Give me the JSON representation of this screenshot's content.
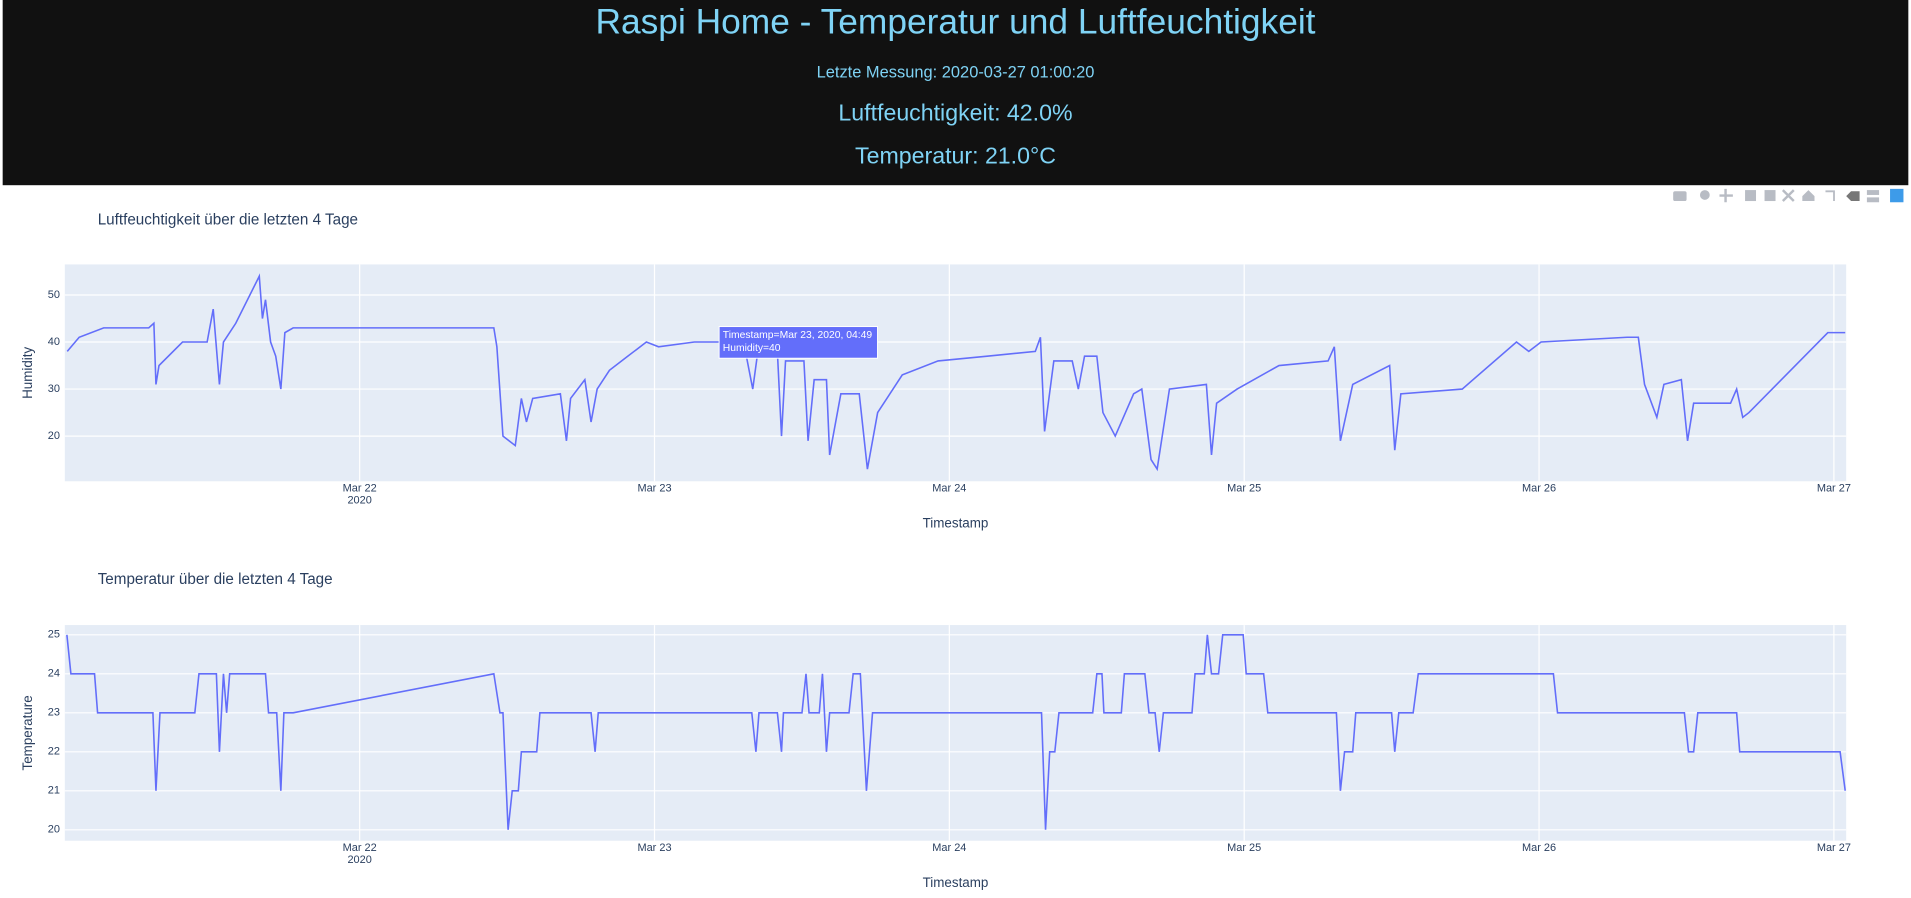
{
  "header": {
    "title": "Raspi Home - Temperatur und Luftfeuchtigkeit",
    "last_measurement": "Letzte Messung: 2020-03-27 01:00:20",
    "humidity": "Luftfeuchtigkeit: 42.0%",
    "temperature": "Temperatur: 21.0°C"
  },
  "chart_data": [
    {
      "type": "line",
      "title": "Luftfeuchtigkeit über die letzten 4 Tage",
      "x_label": "Timestamp",
      "y_label": "Humidity",
      "color": "#636efa",
      "grid": true,
      "xlim": [
        "2020-03-21 00:00",
        "2020-03-27 01:00"
      ],
      "xticks": [
        {
          "value": "2020-03-22",
          "label": "Mar 22",
          "year": "2020"
        },
        {
          "value": "2020-03-23",
          "label": "Mar 23"
        },
        {
          "value": "2020-03-24",
          "label": "Mar 24"
        },
        {
          "value": "2020-03-25",
          "label": "Mar 25"
        },
        {
          "value": "2020-03-26",
          "label": "Mar 26"
        },
        {
          "value": "2020-03-27",
          "label": "Mar 27"
        }
      ],
      "ylim": [
        10.4,
        56.5
      ],
      "yticks": [
        20,
        30,
        40,
        50
      ],
      "tooltip": [
        "Timestamp=Mar 23, 2020, 04:49",
        "Humidity=40"
      ],
      "x": [
        "2020-03-21 00:12",
        "2020-03-21 01:10",
        "2020-03-21 03:10",
        "2020-03-21 06:50",
        "2020-03-21 07:15",
        "2020-03-21 07:25",
        "2020-03-21 07:40",
        "2020-03-21 09:35",
        "2020-03-21 11:35",
        "2020-03-21 12:05",
        "2020-03-21 12:35",
        "2020-03-21 12:55",
        "2020-03-21 13:55",
        "2020-03-21 15:50",
        "2020-03-21 16:05",
        "2020-03-21 16:20",
        "2020-03-21 16:45",
        "2020-03-21 17:10",
        "2020-03-21 17:35",
        "2020-03-21 17:55",
        "2020-03-21 18:35",
        "2020-03-22 10:55",
        "2020-03-22 11:10",
        "2020-03-22 11:40",
        "2020-03-22 12:40",
        "2020-03-22 13:10",
        "2020-03-22 13:35",
        "2020-03-22 14:05",
        "2020-03-22 16:20",
        "2020-03-22 16:50",
        "2020-03-22 17:10",
        "2020-03-22 18:20",
        "2020-03-22 18:50",
        "2020-03-22 19:20",
        "2020-03-22 20:20",
        "2020-03-22 21:50",
        "2020-03-22 23:20",
        "2020-03-23 00:20",
        "2020-03-23 03:15",
        "2020-03-23 07:15",
        "2020-03-23 08:00",
        "2020-03-23 08:25",
        "2020-03-23 10:00",
        "2020-03-23 10:20",
        "2020-03-23 10:40",
        "2020-03-23 12:10",
        "2020-03-23 12:30",
        "2020-03-23 13:00",
        "2020-03-23 14:00",
        "2020-03-23 14:15",
        "2020-03-23 15:10",
        "2020-03-23 16:40",
        "2020-03-23 17:20",
        "2020-03-23 18:10",
        "2020-03-23 20:10",
        "2020-03-23 23:05",
        "2020-03-24 03:05",
        "2020-03-24 07:00",
        "2020-03-24 07:25",
        "2020-03-24 07:45",
        "2020-03-24 08:30",
        "2020-03-24 10:00",
        "2020-03-24 10:30",
        "2020-03-24 11:00",
        "2020-03-24 12:00",
        "2020-03-24 12:30",
        "2020-03-24 13:30",
        "2020-03-24 15:00",
        "2020-03-24 15:40",
        "2020-03-24 16:25",
        "2020-03-24 16:55",
        "2020-03-24 17:55",
        "2020-03-24 20:55",
        "2020-03-24 21:20",
        "2020-03-24 21:45",
        "2020-03-24 23:25",
        "2020-03-25 02:50",
        "2020-03-25 06:50",
        "2020-03-25 07:20",
        "2020-03-25 07:50",
        "2020-03-25 08:50",
        "2020-03-25 11:50",
        "2020-03-25 12:15",
        "2020-03-25 12:45",
        "2020-03-25 17:45",
        "2020-03-25 22:10",
        "2020-03-25 23:10",
        "2020-03-26 00:10",
        "2020-03-26 07:10",
        "2020-03-26 08:05",
        "2020-03-26 08:35",
        "2020-03-26 09:35",
        "2020-03-26 10:10",
        "2020-03-26 11:35",
        "2020-03-26 12:05",
        "2020-03-26 12:35",
        "2020-03-26 15:35",
        "2020-03-26 16:05",
        "2020-03-26 16:35",
        "2020-03-26 17:05",
        "2020-03-26 23:30",
        "2020-03-27 00:55"
      ],
      "values": [
        38,
        41,
        43,
        43,
        44,
        31,
        35,
        40,
        40,
        47,
        31,
        40,
        44,
        54,
        45,
        49,
        40,
        37,
        30,
        42,
        43,
        43,
        39,
        20,
        18,
        28,
        23,
        28,
        29,
        19,
        28,
        32,
        23,
        30,
        34,
        37,
        40,
        39,
        40,
        40,
        30,
        38,
        38,
        20,
        36,
        36,
        19,
        32,
        32,
        16,
        29,
        29,
        13,
        25,
        33,
        36,
        37,
        38,
        41,
        21,
        36,
        36,
        30,
        37,
        37,
        25,
        20,
        29,
        30,
        15,
        13,
        30,
        31,
        16,
        27,
        30,
        35,
        36,
        39,
        19,
        31,
        35,
        17,
        29,
        30,
        40,
        38,
        40,
        41,
        41,
        31,
        24,
        31,
        32,
        19,
        27,
        27,
        30,
        24,
        25,
        42,
        42
      ]
    },
    {
      "type": "line",
      "title": "Temperatur über die letzten 4 Tage",
      "x_label": "Timestamp",
      "y_label": "Temperature",
      "color": "#636efa",
      "grid": true,
      "xlim": [
        "2020-03-21 00:00",
        "2020-03-27 01:00"
      ],
      "xticks": [
        {
          "value": "2020-03-22",
          "label": "Mar 22",
          "year": "2020"
        },
        {
          "value": "2020-03-23",
          "label": "Mar 23"
        },
        {
          "value": "2020-03-24",
          "label": "Mar 24"
        },
        {
          "value": "2020-03-25",
          "label": "Mar 25"
        },
        {
          "value": "2020-03-26",
          "label": "Mar 26"
        },
        {
          "value": "2020-03-27",
          "label": "Mar 27"
        }
      ],
      "ylim": [
        19.72,
        25.25
      ],
      "yticks": [
        20,
        21,
        22,
        23,
        24,
        25
      ],
      "x": [
        "2020-03-21 00:10",
        "2020-03-21 00:30",
        "2020-03-21 02:25",
        "2020-03-21 02:40",
        "2020-03-21 07:10",
        "2020-03-21 07:25",
        "2020-03-21 07:45",
        "2020-03-21 10:35",
        "2020-03-21 10:55",
        "2020-03-21 12:20",
        "2020-03-21 12:35",
        "2020-03-21 12:55",
        "2020-03-21 13:10",
        "2020-03-21 13:25",
        "2020-03-21 16:20",
        "2020-03-21 16:35",
        "2020-03-21 17:15",
        "2020-03-21 17:35",
        "2020-03-21 17:50",
        "2020-03-21 18:35",
        "2020-03-22 10:55",
        "2020-03-22 11:25",
        "2020-03-22 11:40",
        "2020-03-22 12:05",
        "2020-03-22 12:25",
        "2020-03-22 12:55",
        "2020-03-22 13:10",
        "2020-03-22 14:25",
        "2020-03-22 14:40",
        "2020-03-22 18:50",
        "2020-03-22 19:10",
        "2020-03-22 19:25",
        "2020-03-23 07:55",
        "2020-03-23 08:15",
        "2020-03-23 08:30",
        "2020-03-23 10:00",
        "2020-03-23 10:20",
        "2020-03-23 10:30",
        "2020-03-23 12:00",
        "2020-03-23 12:20",
        "2020-03-23 12:35",
        "2020-03-23 13:25",
        "2020-03-23 13:40",
        "2020-03-23 14:00",
        "2020-03-23 14:15",
        "2020-03-23 15:50",
        "2020-03-23 16:10",
        "2020-03-23 16:45",
        "2020-03-23 17:15",
        "2020-03-23 17:45",
        "2020-03-24 07:30",
        "2020-03-24 07:50",
        "2020-03-24 08:10",
        "2020-03-24 08:35",
        "2020-03-24 08:55",
        "2020-03-24 11:40",
        "2020-03-24 12:00",
        "2020-03-24 12:25",
        "2020-03-24 12:35",
        "2020-03-24 14:00",
        "2020-03-24 14:15",
        "2020-03-24 15:55",
        "2020-03-24 16:15",
        "2020-03-24 16:45",
        "2020-03-24 17:05",
        "2020-03-24 17:25",
        "2020-03-24 19:45",
        "2020-03-24 20:00",
        "2020-03-24 20:45",
        "2020-03-24 21:00",
        "2020-03-24 21:20",
        "2020-03-24 21:55",
        "2020-03-24 22:15",
        "2020-03-24 23:55",
        "2020-03-25 00:10",
        "2020-03-25 01:35",
        "2020-03-25 01:55",
        "2020-03-25 07:30",
        "2020-03-25 07:50",
        "2020-03-25 08:10",
        "2020-03-25 08:50",
        "2020-03-25 09:05",
        "2020-03-25 12:00",
        "2020-03-25 12:15",
        "2020-03-25 12:35",
        "2020-03-25 13:45",
        "2020-03-25 14:10",
        "2020-03-26 01:10",
        "2020-03-26 01:30",
        "2020-03-26 11:50",
        "2020-03-26 12:10",
        "2020-03-26 12:35",
        "2020-03-26 12:55",
        "2020-03-26 16:05",
        "2020-03-26 16:20",
        "2020-03-27 00:30",
        "2020-03-27 00:55"
      ],
      "values": [
        25,
        24,
        24,
        23,
        23,
        21,
        23,
        23,
        24,
        24,
        22,
        24,
        23,
        24,
        24,
        23,
        23,
        21,
        23,
        23,
        24,
        23,
        23,
        20,
        21,
        21,
        22,
        22,
        23,
        23,
        22,
        23,
        23,
        22,
        23,
        23,
        22,
        23,
        23,
        24,
        23,
        23,
        24,
        22,
        23,
        23,
        24,
        24,
        21,
        23,
        23,
        20,
        22,
        22,
        23,
        23,
        24,
        24,
        23,
        23,
        24,
        24,
        23,
        23,
        22,
        23,
        23,
        24,
        24,
        25,
        24,
        24,
        25,
        25,
        24,
        24,
        23,
        23,
        21,
        22,
        22,
        23,
        23,
        22,
        23,
        23,
        24,
        24,
        23,
        23,
        22,
        22,
        23,
        23,
        22,
        22,
        21
      ]
    }
  ]
}
